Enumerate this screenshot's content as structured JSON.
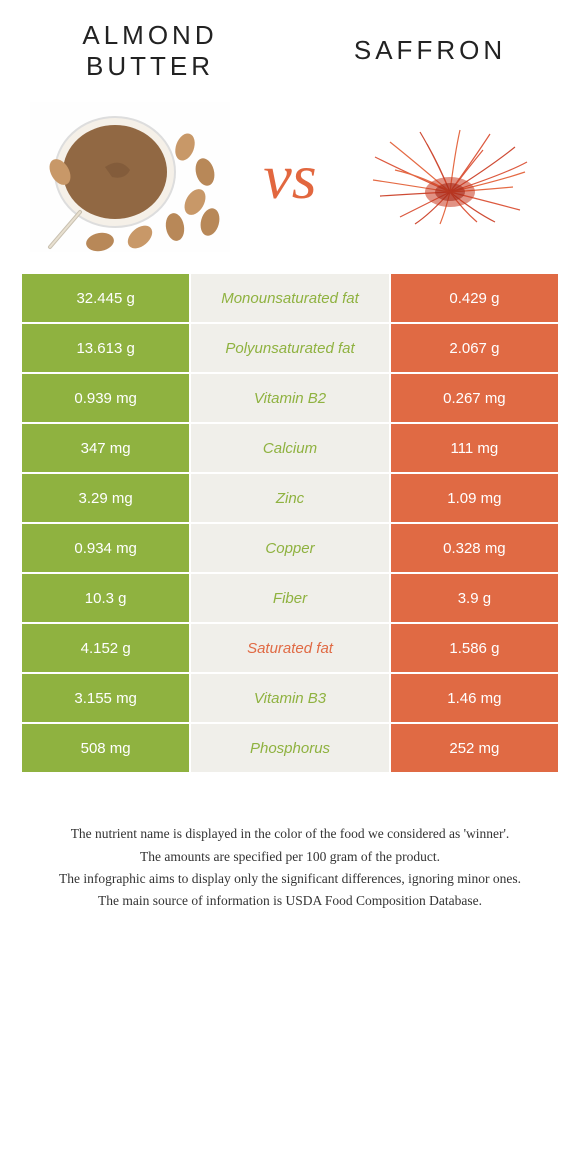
{
  "colors": {
    "left": "#8fb240",
    "right": "#e06a44",
    "label_bg": "#f0efea",
    "vs": "#e2673f"
  },
  "header": {
    "left_title": "Almond butter",
    "right_title": "Saffron",
    "vs": "vs"
  },
  "rows": [
    {
      "left": "32.445 g",
      "label": "Monounsaturated fat",
      "right": "0.429 g",
      "winner": "left"
    },
    {
      "left": "13.613 g",
      "label": "Polyunsaturated fat",
      "right": "2.067 g",
      "winner": "left"
    },
    {
      "left": "0.939 mg",
      "label": "Vitamin B2",
      "right": "0.267 mg",
      "winner": "left"
    },
    {
      "left": "347 mg",
      "label": "Calcium",
      "right": "111 mg",
      "winner": "left"
    },
    {
      "left": "3.29 mg",
      "label": "Zinc",
      "right": "1.09 mg",
      "winner": "left"
    },
    {
      "left": "0.934 mg",
      "label": "Copper",
      "right": "0.328 mg",
      "winner": "left"
    },
    {
      "left": "10.3 g",
      "label": "Fiber",
      "right": "3.9 g",
      "winner": "left"
    },
    {
      "left": "4.152 g",
      "label": "Saturated fat",
      "right": "1.586 g",
      "winner": "right"
    },
    {
      "left": "3.155 mg",
      "label": "Vitamin B3",
      "right": "1.46 mg",
      "winner": "left"
    },
    {
      "left": "508 mg",
      "label": "Phosphorus",
      "right": "252 mg",
      "winner": "left"
    }
  ],
  "footnotes": [
    "The nutrient name is displayed in the color of the food we considered as 'winner'.",
    "The amounts are specified per 100 gram of the product.",
    "The infographic aims to display only the significant differences, ignoring minor ones.",
    "The main source of information is USDA Food Composition Database."
  ]
}
